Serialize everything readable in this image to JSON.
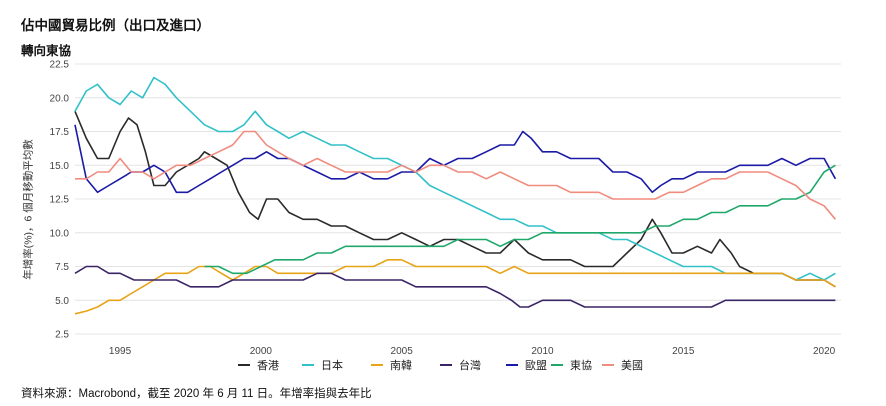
{
  "title": "佔中國貿易比例（出口及進口）",
  "subtitle": "轉向東協",
  "source": "資料來源：Macrobond，截至 2020 年 6 月 11 日。年增率指與去年比",
  "chart_data": {
    "type": "line",
    "ylabel": "年增率(%)，6 個月移動平均數",
    "xlim": [
      1993.4,
      2020.6
    ],
    "ylim": [
      2.5,
      22.5
    ],
    "yticks": [
      "2.5",
      "5.0",
      "7.5",
      "10.0",
      "12.5",
      "15.0",
      "17.5",
      "20.0",
      "22.5"
    ],
    "xticks": [
      "1995",
      "2000",
      "2005",
      "2010",
      "2015",
      "2020"
    ],
    "grid": "horizontal",
    "legend_position": "bottom",
    "series": [
      {
        "name": "香港",
        "color": "#2a2a2a",
        "x": [
          1993.4,
          1993.8,
          1994.2,
          1994.6,
          1995.0,
          1995.3,
          1995.6,
          1995.9,
          1996.2,
          1996.6,
          1997.0,
          1997.4,
          1997.8,
          1998.0,
          1998.4,
          1998.8,
          1999.2,
          1999.6,
          1999.9,
          2000.2,
          2000.6,
          2001.0,
          2001.5,
          2002.0,
          2002.5,
          2003.0,
          2003.5,
          2004.0,
          2004.5,
          2005.0,
          2005.5,
          2006.0,
          2006.5,
          2007.0,
          2007.5,
          2008.0,
          2008.5,
          2009.0,
          2009.5,
          2010.0,
          2010.5,
          2011.0,
          2011.5,
          2012.0,
          2012.5,
          2013.0,
          2013.5,
          2013.9,
          2014.2,
          2014.6,
          2015.0,
          2015.5,
          2016.0,
          2016.3,
          2016.7,
          2017.0,
          2017.5,
          2018.0,
          2018.5,
          2019.0,
          2019.5,
          2020.0,
          2020.4
        ],
        "y": [
          19.0,
          17.0,
          15.5,
          15.5,
          17.5,
          18.5,
          18.0,
          16.0,
          13.5,
          13.5,
          14.5,
          15.0,
          15.5,
          16.0,
          15.5,
          15.0,
          13.0,
          11.5,
          11.0,
          12.5,
          12.5,
          11.5,
          11.0,
          11.0,
          10.5,
          10.5,
          10.0,
          9.5,
          9.5,
          10.0,
          9.5,
          9.0,
          9.5,
          9.5,
          9.0,
          8.5,
          8.5,
          9.5,
          8.5,
          8.0,
          8.0,
          8.0,
          7.5,
          7.5,
          7.5,
          8.5,
          9.5,
          11.0,
          10.0,
          8.5,
          8.5,
          9.0,
          8.5,
          9.5,
          8.5,
          7.5,
          7.0,
          7.0,
          7.0,
          6.5,
          6.5,
          6.5,
          6.0
        ]
      },
      {
        "name": "日本",
        "color": "#33c1c9",
        "x": [
          1993.4,
          1993.8,
          1994.2,
          1994.6,
          1995.0,
          1995.4,
          1995.8,
          1996.2,
          1996.6,
          1997.0,
          1997.5,
          1998.0,
          1998.5,
          1999.0,
          1999.4,
          1999.8,
          2000.2,
          2000.6,
          2001.0,
          2001.5,
          2002.0,
          2002.5,
          2003.0,
          2003.5,
          2004.0,
          2004.5,
          2005.0,
          2005.5,
          2006.0,
          2006.5,
          2007.0,
          2007.5,
          2008.0,
          2008.5,
          2009.0,
          2009.5,
          2010.0,
          2010.5,
          2011.0,
          2011.5,
          2012.0,
          2012.5,
          2013.0,
          2013.5,
          2014.0,
          2014.5,
          2015.0,
          2015.5,
          2016.0,
          2016.5,
          2017.0,
          2017.5,
          2018.0,
          2018.5,
          2019.0,
          2019.5,
          2020.0,
          2020.4
        ],
        "y": [
          19.0,
          20.5,
          21.0,
          20.0,
          19.5,
          20.5,
          20.0,
          21.5,
          21.0,
          20.0,
          19.0,
          18.0,
          17.5,
          17.5,
          18.0,
          19.0,
          18.0,
          17.5,
          17.0,
          17.5,
          17.0,
          16.5,
          16.5,
          16.0,
          15.5,
          15.5,
          15.0,
          14.5,
          13.5,
          13.0,
          12.5,
          12.0,
          11.5,
          11.0,
          11.0,
          10.5,
          10.5,
          10.0,
          10.0,
          10.0,
          10.0,
          9.5,
          9.5,
          9.0,
          8.5,
          8.0,
          7.5,
          7.5,
          7.5,
          7.0,
          7.0,
          7.0,
          7.0,
          7.0,
          6.5,
          7.0,
          6.5,
          7.0
        ]
      },
      {
        "name": "南韓",
        "color": "#e8a317",
        "x": [
          1993.4,
          1993.8,
          1994.2,
          1994.6,
          1995.0,
          1995.4,
          1995.8,
          1996.2,
          1996.6,
          1997.0,
          1997.4,
          1997.8,
          1998.2,
          1998.6,
          1999.0,
          1999.4,
          1999.8,
          2000.2,
          2000.6,
          2001.0,
          2001.5,
          2002.0,
          2002.5,
          2003.0,
          2003.5,
          2004.0,
          2004.5,
          2005.0,
          2005.5,
          2006.0,
          2006.5,
          2007.0,
          2007.5,
          2008.0,
          2008.5,
          2009.0,
          2009.5,
          2010.0,
          2010.5,
          2011.0,
          2011.5,
          2012.0,
          2012.5,
          2013.0,
          2013.5,
          2014.0,
          2014.5,
          2015.0,
          2015.5,
          2016.0,
          2016.5,
          2017.0,
          2017.5,
          2018.0,
          2018.5,
          2019.0,
          2019.5,
          2020.0,
          2020.4
        ],
        "y": [
          4.0,
          4.2,
          4.5,
          5.0,
          5.0,
          5.5,
          6.0,
          6.5,
          7.0,
          7.0,
          7.0,
          7.5,
          7.5,
          7.0,
          6.5,
          7.0,
          7.5,
          7.5,
          7.0,
          7.0,
          7.0,
          7.0,
          7.0,
          7.5,
          7.5,
          7.5,
          8.0,
          8.0,
          7.5,
          7.5,
          7.5,
          7.5,
          7.5,
          7.5,
          7.0,
          7.5,
          7.0,
          7.0,
          7.0,
          7.0,
          7.0,
          7.0,
          7.0,
          7.0,
          7.0,
          7.0,
          7.0,
          7.0,
          7.0,
          7.0,
          7.0,
          7.0,
          7.0,
          7.0,
          7.0,
          6.5,
          6.5,
          6.5,
          6.0
        ]
      },
      {
        "name": "台灣",
        "color": "#3a2466",
        "x": [
          1993.4,
          1993.8,
          1994.2,
          1994.6,
          1995.0,
          1995.5,
          1996.0,
          1996.5,
          1997.0,
          1997.5,
          1998.0,
          1998.5,
          1999.0,
          1999.5,
          2000.0,
          2000.5,
          2001.0,
          2001.5,
          2002.0,
          2002.5,
          2003.0,
          2003.5,
          2004.0,
          2004.5,
          2005.0,
          2005.5,
          2006.0,
          2006.5,
          2007.0,
          2007.5,
          2008.0,
          2008.5,
          2008.9,
          2009.2,
          2009.5,
          2010.0,
          2010.5,
          2011.0,
          2011.5,
          2012.0,
          2012.5,
          2013.0,
          2013.5,
          2014.0,
          2014.5,
          2015.0,
          2015.5,
          2016.0,
          2016.5,
          2017.0,
          2017.5,
          2018.0,
          2018.5,
          2019.0,
          2019.5,
          2020.0,
          2020.4
        ],
        "y": [
          7.0,
          7.5,
          7.5,
          7.0,
          7.0,
          6.5,
          6.5,
          6.5,
          6.5,
          6.0,
          6.0,
          6.0,
          6.5,
          6.5,
          6.5,
          6.5,
          6.5,
          6.5,
          7.0,
          7.0,
          6.5,
          6.5,
          6.5,
          6.5,
          6.5,
          6.0,
          6.0,
          6.0,
          6.0,
          6.0,
          6.0,
          5.5,
          5.0,
          4.5,
          4.5,
          5.0,
          5.0,
          5.0,
          4.5,
          4.5,
          4.5,
          4.5,
          4.5,
          4.5,
          4.5,
          4.5,
          4.5,
          4.5,
          5.0,
          5.0,
          5.0,
          5.0,
          5.0,
          5.0,
          5.0,
          5.0,
          5.0
        ]
      },
      {
        "name": "歐盟",
        "color": "#1a1aa6",
        "x": [
          1993.4,
          1993.8,
          1994.2,
          1994.6,
          1995.0,
          1995.4,
          1995.8,
          1996.2,
          1996.6,
          1997.0,
          1997.4,
          1997.8,
          1998.2,
          1998.6,
          1999.0,
          1999.4,
          1999.8,
          2000.2,
          2000.6,
          2001.0,
          2001.5,
          2002.0,
          2002.5,
          2003.0,
          2003.5,
          2004.0,
          2004.5,
          2005.0,
          2005.5,
          2006.0,
          2006.5,
          2007.0,
          2007.5,
          2008.0,
          2008.5,
          2009.0,
          2009.3,
          2009.6,
          2010.0,
          2010.5,
          2011.0,
          2011.5,
          2012.0,
          2012.5,
          2013.0,
          2013.5,
          2013.9,
          2014.2,
          2014.6,
          2015.0,
          2015.5,
          2016.0,
          2016.5,
          2017.0,
          2017.5,
          2018.0,
          2018.5,
          2019.0,
          2019.5,
          2020.0,
          2020.4
        ],
        "y": [
          18.0,
          14.0,
          13.0,
          13.5,
          14.0,
          14.5,
          14.5,
          15.0,
          14.5,
          13.0,
          13.0,
          13.5,
          14.0,
          14.5,
          15.0,
          15.5,
          15.5,
          16.0,
          15.5,
          15.5,
          15.0,
          14.5,
          14.0,
          14.0,
          14.5,
          14.0,
          14.0,
          14.5,
          14.5,
          15.5,
          15.0,
          15.5,
          15.5,
          16.0,
          16.5,
          16.5,
          17.5,
          17.0,
          16.0,
          16.0,
          15.5,
          15.5,
          15.5,
          14.5,
          14.5,
          14.0,
          13.0,
          13.5,
          14.0,
          14.0,
          14.5,
          14.5,
          14.5,
          15.0,
          15.0,
          15.0,
          15.5,
          15.0,
          15.5,
          15.5,
          14.0
        ]
      },
      {
        "name": "東協",
        "color": "#20a86b",
        "x": [
          1998.0,
          1998.5,
          1999.0,
          1999.5,
          2000.0,
          2000.5,
          2001.0,
          2001.5,
          2002.0,
          2002.5,
          2003.0,
          2003.5,
          2004.0,
          2004.5,
          2005.0,
          2005.5,
          2006.0,
          2006.5,
          2007.0,
          2007.5,
          2008.0,
          2008.5,
          2009.0,
          2009.5,
          2010.0,
          2010.5,
          2011.0,
          2011.5,
          2012.0,
          2012.5,
          2013.0,
          2013.5,
          2014.0,
          2014.5,
          2015.0,
          2015.5,
          2016.0,
          2016.5,
          2017.0,
          2017.5,
          2018.0,
          2018.5,
          2019.0,
          2019.5,
          2020.0,
          2020.4
        ],
        "y": [
          7.5,
          7.5,
          7.0,
          7.0,
          7.5,
          8.0,
          8.0,
          8.0,
          8.5,
          8.5,
          9.0,
          9.0,
          9.0,
          9.0,
          9.0,
          9.0,
          9.0,
          9.0,
          9.5,
          9.5,
          9.5,
          9.0,
          9.5,
          9.5,
          10.0,
          10.0,
          10.0,
          10.0,
          10.0,
          10.0,
          10.0,
          10.0,
          10.5,
          10.5,
          11.0,
          11.0,
          11.5,
          11.5,
          12.0,
          12.0,
          12.0,
          12.5,
          12.5,
          13.0,
          14.5,
          15.0
        ]
      },
      {
        "name": "美國",
        "color": "#f08c7e",
        "x": [
          1993.4,
          1993.8,
          1994.2,
          1994.6,
          1995.0,
          1995.4,
          1995.8,
          1996.2,
          1996.6,
          1997.0,
          1997.5,
          1998.0,
          1998.5,
          1999.0,
          1999.4,
          1999.8,
          2000.2,
          2000.6,
          2001.0,
          2001.5,
          2002.0,
          2002.5,
          2003.0,
          2003.5,
          2004.0,
          2004.5,
          2005.0,
          2005.5,
          2006.0,
          2006.5,
          2007.0,
          2007.5,
          2008.0,
          2008.5,
          2009.0,
          2009.5,
          2010.0,
          2010.5,
          2011.0,
          2011.5,
          2012.0,
          2012.5,
          2013.0,
          2013.5,
          2014.0,
          2014.5,
          2015.0,
          2015.5,
          2016.0,
          2016.5,
          2017.0,
          2017.5,
          2018.0,
          2018.5,
          2019.0,
          2019.5,
          2020.0,
          2020.4
        ],
        "y": [
          14.0,
          14.0,
          14.5,
          14.5,
          15.5,
          14.5,
          14.5,
          14.0,
          14.5,
          15.0,
          15.0,
          15.5,
          16.0,
          16.5,
          17.5,
          17.5,
          16.5,
          16.0,
          15.5,
          15.0,
          15.5,
          15.0,
          14.5,
          14.5,
          14.5,
          14.5,
          15.0,
          14.5,
          15.0,
          15.0,
          14.5,
          14.5,
          14.0,
          14.5,
          14.0,
          13.5,
          13.5,
          13.5,
          13.0,
          13.0,
          13.0,
          12.5,
          12.5,
          12.5,
          12.5,
          13.0,
          13.0,
          13.5,
          14.0,
          14.0,
          14.5,
          14.5,
          14.5,
          14.0,
          13.5,
          12.5,
          12.0,
          11.0
        ]
      }
    ]
  }
}
